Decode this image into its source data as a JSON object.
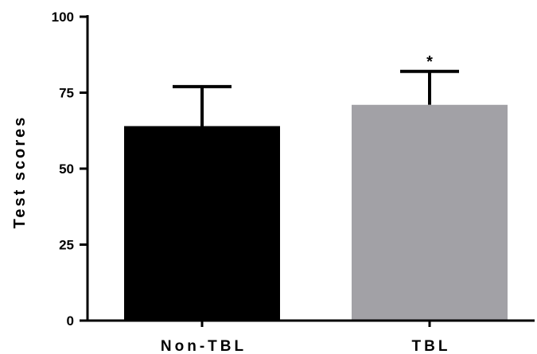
{
  "chart_data": {
    "type": "bar",
    "categories": [
      "Non-TBL",
      "TBL"
    ],
    "values": [
      64,
      71
    ],
    "error_upper": [
      77,
      82
    ],
    "annotations": [
      "",
      "*"
    ],
    "colors": [
      "#000000",
      "#a2a1a6"
    ],
    "title": "",
    "xlabel": "",
    "ylabel": "Test scores",
    "ylim": [
      0,
      100
    ],
    "yticks": [
      0,
      25,
      50,
      75,
      100
    ],
    "grid": false,
    "legend": "none"
  }
}
